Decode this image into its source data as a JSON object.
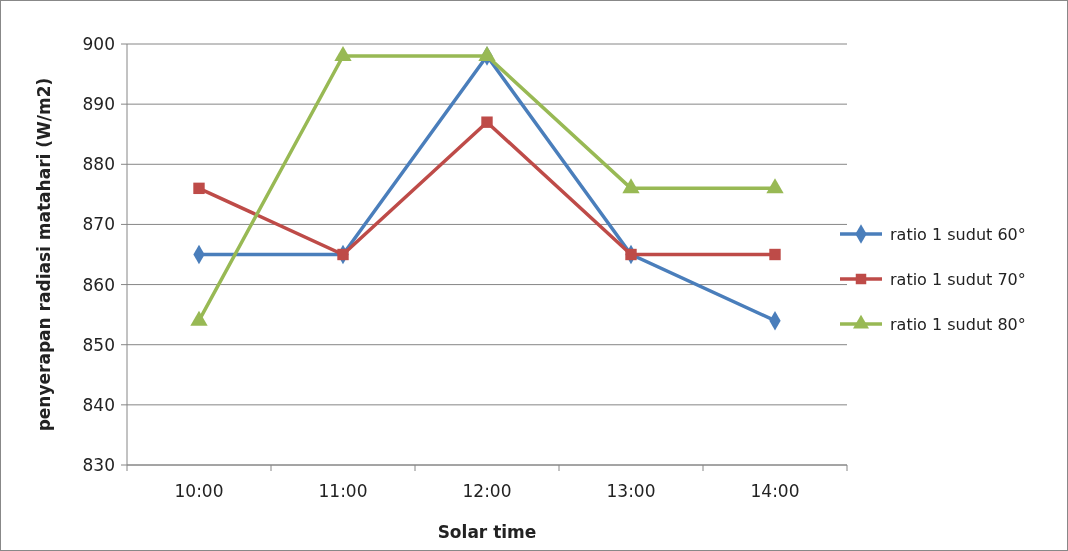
{
  "chart_data": {
    "type": "line",
    "xlabel": "Solar time",
    "ylabel": "penyerapan radiasi matahari (W/m2)",
    "categories": [
      "10:00",
      "11:00",
      "12:00",
      "13:00",
      "14:00"
    ],
    "series": [
      {
        "name": "ratio 1 sudut 60°",
        "color": "#4a7ebb",
        "marker": "diamond",
        "values": [
          865,
          865,
          898,
          865,
          854
        ]
      },
      {
        "name": "ratio 1 sudut 70°",
        "color": "#be4b48",
        "marker": "square",
        "values": [
          876,
          865,
          887,
          865,
          865
        ]
      },
      {
        "name": "ratio 1 sudut 80°",
        "color": "#98b954",
        "marker": "triangle",
        "values": [
          854,
          898,
          898,
          876,
          876
        ]
      }
    ],
    "ylim": [
      830,
      900
    ],
    "yticks": [
      830,
      840,
      850,
      860,
      870,
      880,
      890,
      900
    ],
    "grid": "y",
    "legend": "right",
    "line_style": "solid"
  }
}
